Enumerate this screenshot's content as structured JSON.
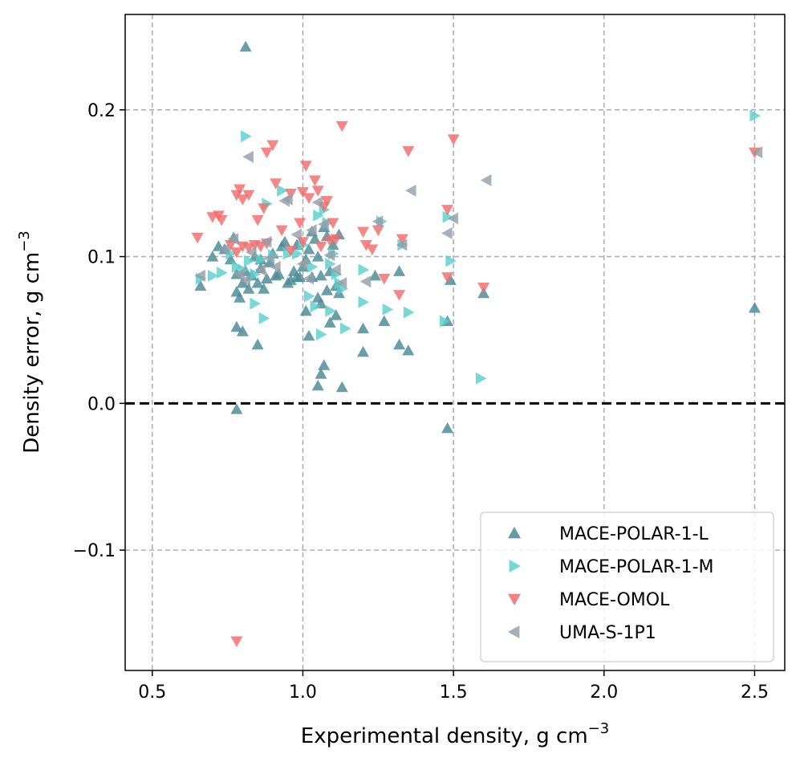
{
  "chart_data": {
    "type": "scatter",
    "xlabel": "Experimental density, g cm",
    "xlabel_sup": "−3",
    "ylabel": "Density error, g cm",
    "ylabel_sup": "−3",
    "xlim": [
      0.41,
      2.6
    ],
    "ylim": [
      -0.182,
      0.265
    ],
    "xticks": [
      0.5,
      1.0,
      1.5,
      2.0,
      2.5
    ],
    "xtick_labels": [
      "0.5",
      "1.0",
      "1.5",
      "2.0",
      "2.5"
    ],
    "yticks": [
      -0.1,
      0.0,
      0.1,
      0.2
    ],
    "ytick_labels": [
      "−0.1",
      "0.0",
      "0.1",
      "0.2"
    ],
    "grid": true,
    "reference_line_y": 0.0,
    "legend_position": "bottom-right",
    "series": [
      {
        "name": "MACE-POLAR-1-L",
        "marker": "triangle-up",
        "color": "#4a8a95",
        "points": [
          [
            0.81,
            0.243
          ],
          [
            0.66,
            0.08
          ],
          [
            0.7,
            0.1
          ],
          [
            0.72,
            0.107
          ],
          [
            0.74,
            0.105
          ],
          [
            0.76,
            0.098
          ],
          [
            0.77,
            0.113
          ],
          [
            0.78,
            0.088
          ],
          [
            0.78,
            0.076
          ],
          [
            0.79,
            0.072
          ],
          [
            0.8,
            0.082
          ],
          [
            0.81,
            0.09
          ],
          [
            0.82,
            0.078
          ],
          [
            0.84,
            0.1
          ],
          [
            0.85,
            0.082
          ],
          [
            0.86,
            0.092
          ],
          [
            0.87,
            0.078
          ],
          [
            0.88,
            0.085
          ],
          [
            0.89,
            0.096
          ],
          [
            0.9,
            0.102
          ],
          [
            0.92,
            0.088
          ],
          [
            0.93,
            0.107
          ],
          [
            0.94,
            0.11
          ],
          [
            0.95,
            0.082
          ],
          [
            0.97,
            0.09
          ],
          [
            0.98,
            0.108
          ],
          [
            0.99,
            0.086
          ],
          [
            1.0,
            0.093
          ],
          [
            1.01,
            0.098
          ],
          [
            1.02,
            0.105
          ],
          [
            1.03,
            0.117
          ],
          [
            1.04,
            0.112
          ],
          [
            1.05,
            0.1
          ],
          [
            1.06,
            0.087
          ],
          [
            1.07,
            0.12
          ],
          [
            1.08,
            0.114
          ],
          [
            1.09,
            0.09
          ],
          [
            1.1,
            0.108
          ],
          [
            1.11,
            0.08
          ],
          [
            1.12,
            0.115
          ],
          [
            1.12,
            0.075
          ],
          [
            1.03,
            0.086
          ],
          [
            1.05,
            0.072
          ],
          [
            1.06,
            0.068
          ],
          [
            1.08,
            0.077
          ],
          [
            1.01,
            0.063
          ],
          [
            1.02,
            0.046
          ],
          [
            1.09,
            0.055
          ],
          [
            1.11,
            0.06
          ],
          [
            1.05,
            0.012
          ],
          [
            1.06,
            0.02
          ],
          [
            1.07,
            0.026
          ],
          [
            1.13,
            0.011
          ],
          [
            0.78,
            0.052
          ],
          [
            0.8,
            0.049
          ],
          [
            0.85,
            0.04
          ],
          [
            0.78,
            -0.004
          ],
          [
            1.2,
            0.051
          ],
          [
            1.2,
            0.035
          ],
          [
            1.27,
            0.056
          ],
          [
            1.24,
            0.087
          ],
          [
            1.32,
            0.09
          ],
          [
            1.32,
            0.04
          ],
          [
            1.35,
            0.036
          ],
          [
            1.48,
            0.056
          ],
          [
            1.49,
            0.084
          ],
          [
            1.48,
            -0.017
          ],
          [
            1.6,
            0.075
          ],
          [
            2.5,
            0.065
          ],
          [
            0.98,
            0.086
          ],
          [
            0.96,
            0.084
          ],
          [
            0.91,
            0.087
          ],
          [
            0.83,
            0.087
          ],
          [
            0.86,
            0.098
          ]
        ]
      },
      {
        "name": "MACE-POLAR-1-M",
        "marker": "triangle-right",
        "color": "#5ad0cc",
        "points": [
          [
            0.81,
            0.182
          ],
          [
            0.88,
            0.136
          ],
          [
            0.93,
            0.145
          ],
          [
            0.66,
            0.085
          ],
          [
            0.7,
            0.087
          ],
          [
            0.73,
            0.089
          ],
          [
            0.76,
            0.102
          ],
          [
            0.78,
            0.093
          ],
          [
            0.8,
            0.091
          ],
          [
            0.82,
            0.097
          ],
          [
            0.84,
            0.088
          ],
          [
            0.86,
            0.098
          ],
          [
            0.87,
            0.058
          ],
          [
            0.84,
            0.068
          ],
          [
            0.9,
            0.101
          ],
          [
            0.95,
            0.102
          ],
          [
            0.98,
            0.102
          ],
          [
            1.0,
            0.108
          ],
          [
            1.02,
            0.073
          ],
          [
            1.04,
            0.066
          ],
          [
            1.05,
            0.128
          ],
          [
            1.07,
            0.132
          ],
          [
            1.08,
            0.123
          ],
          [
            1.09,
            0.095
          ],
          [
            1.1,
            0.102
          ],
          [
            1.11,
            0.088
          ],
          [
            1.12,
            0.082
          ],
          [
            1.13,
            0.078
          ],
          [
            1.06,
            0.047
          ],
          [
            1.09,
            0.063
          ],
          [
            1.14,
            0.051
          ],
          [
            1.2,
            0.091
          ],
          [
            1.2,
            0.069
          ],
          [
            1.26,
            0.124
          ],
          [
            1.33,
            0.108
          ],
          [
            1.35,
            0.062
          ],
          [
            1.47,
            0.056
          ],
          [
            1.49,
            0.097
          ],
          [
            1.48,
            0.127
          ],
          [
            1.59,
            0.017
          ],
          [
            2.5,
            0.196
          ],
          [
            1.28,
            0.064
          ],
          [
            1.03,
            0.093
          ]
        ]
      },
      {
        "name": "MACE-OMOL",
        "marker": "triangle-down",
        "color": "#f26b6b",
        "points": [
          [
            0.65,
            0.113
          ],
          [
            0.7,
            0.127
          ],
          [
            0.72,
            0.128
          ],
          [
            0.73,
            0.125
          ],
          [
            0.78,
            0.142
          ],
          [
            0.79,
            0.146
          ],
          [
            0.8,
            0.139
          ],
          [
            0.82,
            0.142
          ],
          [
            0.76,
            0.108
          ],
          [
            0.78,
            0.103
          ],
          [
            0.8,
            0.107
          ],
          [
            0.82,
            0.106
          ],
          [
            0.84,
            0.108
          ],
          [
            0.86,
            0.107
          ],
          [
            0.88,
            0.109
          ],
          [
            0.88,
            0.171
          ],
          [
            0.9,
            0.176
          ],
          [
            0.85,
            0.125
          ],
          [
            0.87,
            0.133
          ],
          [
            0.91,
            0.15
          ],
          [
            0.93,
            0.118
          ],
          [
            0.96,
            0.143
          ],
          [
            0.99,
            0.123
          ],
          [
            1.0,
            0.144
          ],
          [
            1.01,
            0.162
          ],
          [
            1.02,
            0.14
          ],
          [
            1.04,
            0.152
          ],
          [
            1.05,
            0.145
          ],
          [
            1.06,
            0.107
          ],
          [
            1.07,
            0.134
          ],
          [
            1.08,
            0.138
          ],
          [
            1.09,
            0.111
          ],
          [
            1.1,
            0.123
          ],
          [
            1.11,
            0.112
          ],
          [
            1.13,
            0.189
          ],
          [
            1.2,
            0.117
          ],
          [
            1.21,
            0.108
          ],
          [
            1.23,
            0.105
          ],
          [
            1.25,
            0.118
          ],
          [
            1.27,
            0.085
          ],
          [
            1.32,
            0.074
          ],
          [
            1.33,
            0.112
          ],
          [
            1.35,
            0.172
          ],
          [
            1.48,
            0.086
          ],
          [
            1.48,
            0.132
          ],
          [
            1.5,
            0.18
          ],
          [
            1.6,
            0.079
          ],
          [
            2.5,
            0.171
          ],
          [
            0.78,
            -0.162
          ],
          [
            0.96,
            0.104
          ],
          [
            1.0,
            0.11
          ]
        ]
      },
      {
        "name": "UMA-S-1P1",
        "marker": "triangle-left",
        "color": "#959fa8",
        "points": [
          [
            0.82,
            0.168
          ],
          [
            0.95,
            0.139
          ],
          [
            0.66,
            0.087
          ],
          [
            0.74,
            0.105
          ],
          [
            0.77,
            0.112
          ],
          [
            0.79,
            0.088
          ],
          [
            0.81,
            0.084
          ],
          [
            0.83,
            0.103
          ],
          [
            0.86,
            0.091
          ],
          [
            0.88,
            0.11
          ],
          [
            0.91,
            0.093
          ],
          [
            0.94,
            0.138
          ],
          [
            0.98,
            0.115
          ],
          [
            1.0,
            0.095
          ],
          [
            1.03,
            0.118
          ],
          [
            1.05,
            0.137
          ],
          [
            1.07,
            0.122
          ],
          [
            1.09,
            0.101
          ],
          [
            1.11,
            0.091
          ],
          [
            1.13,
            0.082
          ],
          [
            1.21,
            0.083
          ],
          [
            1.25,
            0.124
          ],
          [
            1.33,
            0.108
          ],
          [
            1.36,
            0.145
          ],
          [
            1.48,
            0.116
          ],
          [
            1.5,
            0.126
          ],
          [
            1.61,
            0.152
          ],
          [
            2.51,
            0.171
          ],
          [
            1.02,
            0.085
          ],
          [
            0.89,
            0.099
          ]
        ]
      }
    ]
  }
}
